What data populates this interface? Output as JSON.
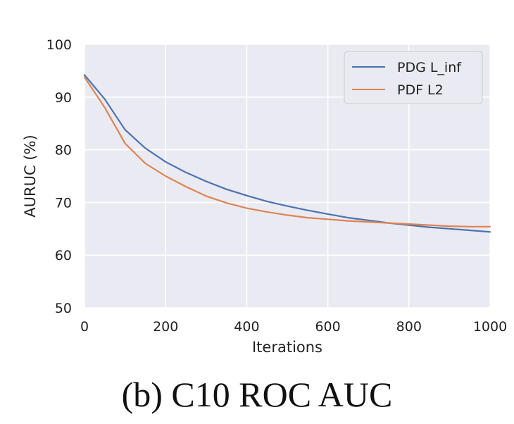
{
  "caption": "(b) C10 ROC AUC",
  "colors": {
    "plot_background": "#eaeaf2",
    "grid": "#ffffff",
    "series_1": "#4c72b0",
    "series_2": "#dd8452"
  },
  "chart_data": {
    "type": "line",
    "title": "",
    "xlabel": "Iterations",
    "ylabel": "AURUC (%)",
    "xlim": [
      0,
      1000
    ],
    "ylim": [
      50,
      100
    ],
    "xticks": [
      0,
      200,
      400,
      600,
      800,
      1000
    ],
    "yticks": [
      50,
      60,
      70,
      80,
      90,
      100
    ],
    "grid": true,
    "legend_position": "top-right",
    "x": [
      0,
      50,
      100,
      150,
      200,
      250,
      300,
      350,
      400,
      450,
      500,
      550,
      600,
      650,
      700,
      750,
      800,
      850,
      900,
      950,
      1000
    ],
    "series": [
      {
        "name": "PDG L_inf",
        "color": "#4c72b0",
        "values": [
          94.2,
          89.6,
          83.8,
          80.3,
          77.7,
          75.7,
          74.0,
          72.5,
          71.3,
          70.2,
          69.3,
          68.5,
          67.8,
          67.1,
          66.6,
          66.1,
          65.7,
          65.3,
          65.0,
          64.7,
          64.4
        ]
      },
      {
        "name": "PDF L2",
        "color": "#dd8452",
        "values": [
          93.8,
          88.0,
          81.2,
          77.4,
          75.0,
          73.0,
          71.2,
          69.9,
          68.9,
          68.2,
          67.6,
          67.1,
          66.8,
          66.5,
          66.3,
          66.1,
          65.9,
          65.7,
          65.5,
          65.4,
          65.4
        ]
      }
    ]
  }
}
